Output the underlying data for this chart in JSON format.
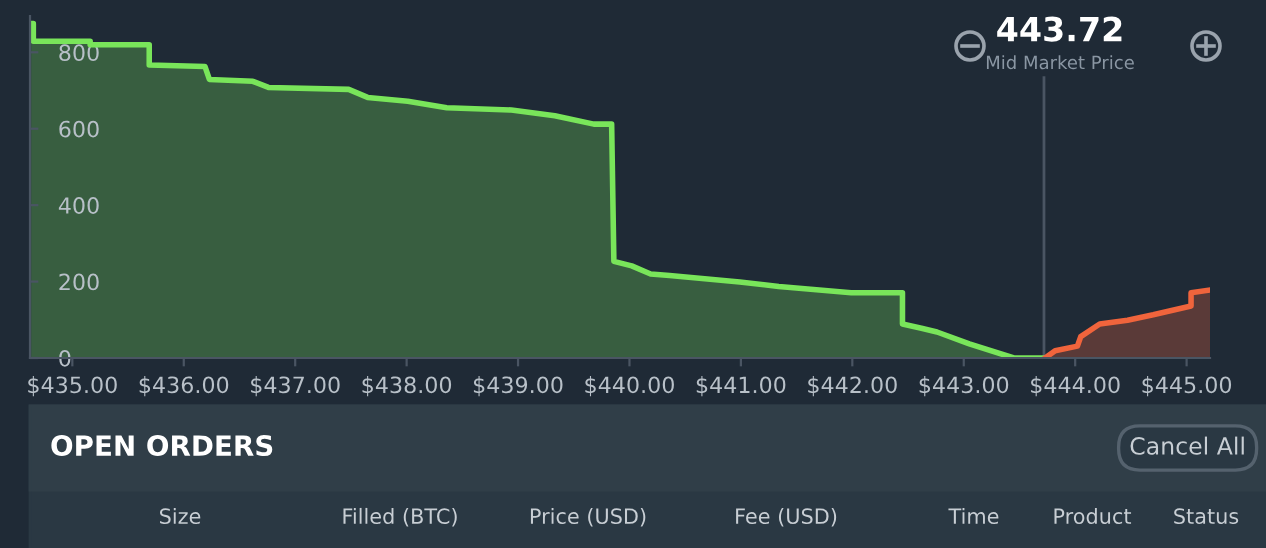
{
  "chart_data": {
    "type": "area",
    "series": [
      {
        "color": "#79e55a",
        "x": [
          434.63,
          434.65,
          434.65,
          435.16,
          435.16,
          435.69,
          435.69,
          436.19,
          436.23,
          436.62,
          436.76,
          437.48,
          437.65,
          438.01,
          438.36,
          438.94,
          439.33,
          439.68,
          439.84,
          439.86,
          440.02,
          440.19,
          440.36,
          440.99,
          441.34,
          441.99,
          442.45,
          442.45,
          442.62,
          442.76,
          443.05,
          443.45,
          443.73
        ],
        "values": [
          875,
          875,
          829,
          829,
          820,
          820,
          767,
          763,
          729,
          724,
          708,
          703,
          682,
          672,
          655,
          649,
          634,
          612,
          612,
          253,
          241,
          220,
          216,
          199,
          187,
          171,
          171,
          89,
          78,
          68,
          37,
          0,
          0
        ]
      },
      {
        "color": "#f0643c",
        "x": [
          443.73,
          443.82,
          444.02,
          444.05,
          444.22,
          444.47,
          444.7,
          445.04,
          445.04,
          445.21
        ],
        "values": [
          0,
          19,
          31,
          56,
          89,
          99,
          113,
          136,
          171,
          178
        ]
      }
    ],
    "xlim": [
      434.62,
      445.21
    ],
    "ylim": [
      0,
      895
    ],
    "xticks": [
      {
        "value": 435,
        "label": "$435.00"
      },
      {
        "value": 436,
        "label": "$436.00"
      },
      {
        "value": 437,
        "label": "$437.00"
      },
      {
        "value": 438,
        "label": "$438.00"
      },
      {
        "value": 439,
        "label": "$439.00"
      },
      {
        "value": 440,
        "label": "$440.00"
      },
      {
        "value": 441,
        "label": "$441.00"
      },
      {
        "value": 442,
        "label": "$442.00"
      },
      {
        "value": 443,
        "label": "$443.00"
      },
      {
        "value": 444,
        "label": "$444.00"
      },
      {
        "value": 445,
        "label": "$445.00"
      }
    ],
    "yticks": [
      0,
      200,
      400,
      600,
      800
    ],
    "grid": false,
    "ref_lines": [
      {
        "axis": "x",
        "value": 443.72,
        "label": "443.72",
        "color": "#4a5563"
      }
    ],
    "annotations": [
      "Mid Market Price",
      "OPEN ORDERS",
      "Cancel All",
      "Size",
      "Filled (BTC)",
      "Price (USD)",
      "Fee (USD)",
      "Time",
      "Product",
      "Status"
    ]
  }
}
